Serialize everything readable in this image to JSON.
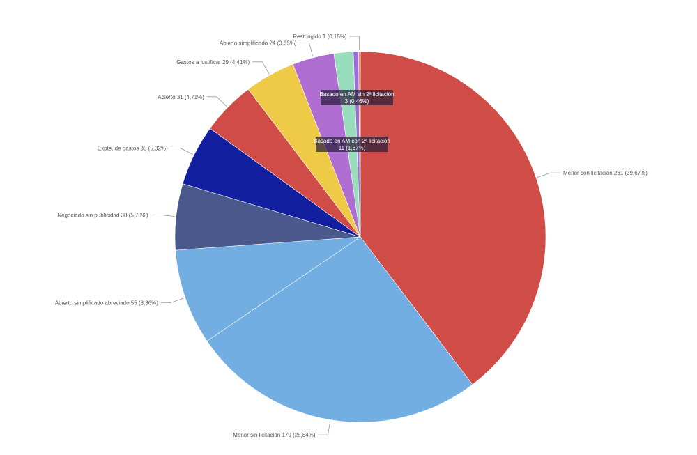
{
  "chart_data": {
    "type": "pie",
    "slices": [
      {
        "label": "Menor con licitación",
        "value": 261,
        "percent": "39,67%",
        "color": "#CF4C47"
      },
      {
        "label": "Menor sin licitación",
        "value": 170,
        "percent": "25,84%",
        "color": "#72AEE2"
      },
      {
        "label": "Abierto simplificado abreviado",
        "value": 55,
        "percent": "8,36%",
        "color": "#72AEE2"
      },
      {
        "label": "Negociado sin publicidad",
        "value": 38,
        "percent": "5,78%",
        "color": "#4A588B"
      },
      {
        "label": "Expte. de gastos",
        "value": 35,
        "percent": "5,32%",
        "color": "#1220A0"
      },
      {
        "label": "Abierto",
        "value": 31,
        "percent": "4,71%",
        "color": "#CF4C47"
      },
      {
        "label": "Gastos a justificar",
        "value": 29,
        "percent": "4,41%",
        "color": "#EECA47"
      },
      {
        "label": "Abierto simplificado",
        "value": 24,
        "percent": "3,65%",
        "color": "#B06ED3"
      },
      {
        "label": "Basado en AM con 2ª licitación",
        "value": 11,
        "percent": "1,67%",
        "color": "#98DDBC"
      },
      {
        "label": "Basado en AM sin 2ª licitación",
        "value": 3,
        "percent": "0,46%",
        "color": "#9A6FD8"
      },
      {
        "label": "Restringido",
        "value": 1,
        "percent": "0,15%",
        "color": "#F08A5A"
      }
    ]
  }
}
